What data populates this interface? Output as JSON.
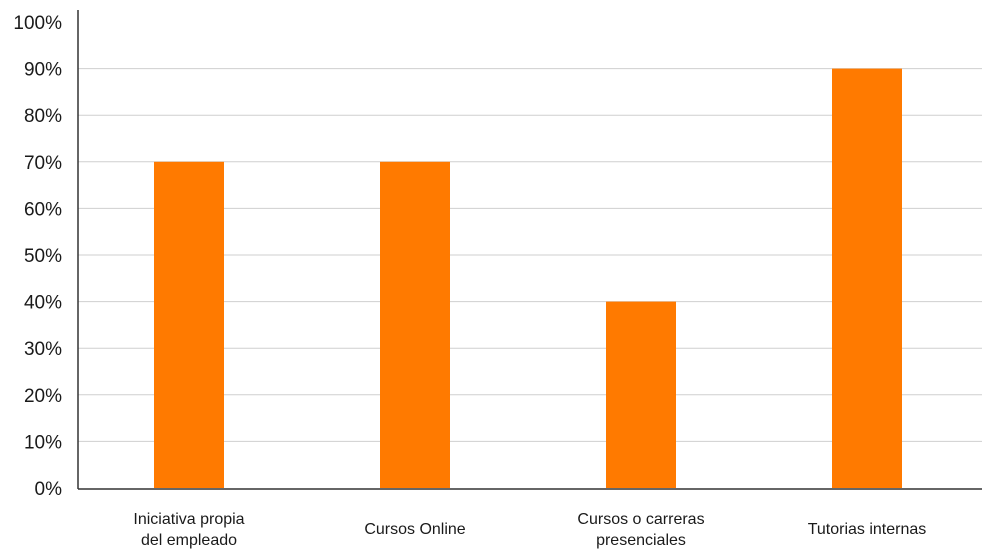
{
  "chart_data": {
    "type": "bar",
    "categories": [
      [
        "Iniciativa propia",
        "del empleado"
      ],
      [
        "Cursos Online"
      ],
      [
        "Cursos o carreras",
        "presenciales"
      ],
      [
        "Tutorias internas"
      ]
    ],
    "values": [
      0.7,
      0.7,
      0.4,
      0.9
    ],
    "ylim": [
      0,
      1
    ],
    "yticks": [
      "0%",
      "10%",
      "20%",
      "30%",
      "40%",
      "50%",
      "60%",
      "70%",
      "80%",
      "90%",
      "100%"
    ],
    "grid": true,
    "legend": "none",
    "bar_color": "#FF7A00",
    "grid_color": "#cfcfcf",
    "axis_color": "#333333"
  }
}
